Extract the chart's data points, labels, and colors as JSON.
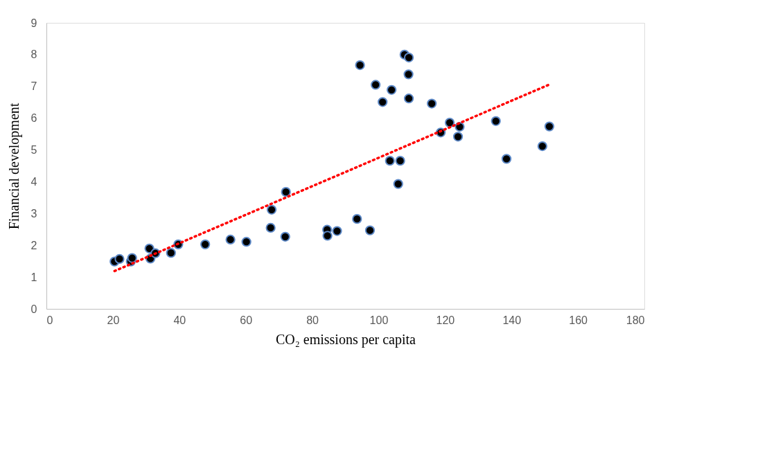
{
  "chart_data": {
    "type": "scatter",
    "xlabel": "CO₂ emissions per capita",
    "ylabel": "Financial development",
    "xlim": [
      0,
      180
    ],
    "xticks": [
      0,
      20,
      40,
      60,
      80,
      100,
      120,
      140,
      160,
      180
    ],
    "ylim": [
      0,
      9
    ],
    "yticks": [
      0,
      1,
      2,
      3,
      4,
      5,
      6,
      7,
      8,
      9
    ],
    "grid": false,
    "legend": false,
    "marker": "circle",
    "series": [
      {
        "color": "#000000",
        "x": [
          20.5,
          22.0,
          25.4,
          25.8,
          31.0,
          31.3,
          32.8,
          37.5,
          39.7,
          47.8,
          55.4,
          60.2,
          72.1,
          67.8,
          67.5,
          71.9,
          84.5,
          84.6,
          87.5,
          93.5,
          97.4,
          105.9,
          94.4,
          107.8,
          109.1,
          109.0,
          99.1,
          103.9,
          101.2,
          109.1,
          116.0,
          121.4,
          124.4,
          118.7,
          123.9,
          103.4,
          106.5,
          135.3,
          151.4,
          149.3,
          138.5
        ],
        "values": [
          1.49,
          1.57,
          1.49,
          1.6,
          1.9,
          1.58,
          1.75,
          1.76,
          2.03,
          2.03,
          2.18,
          2.11,
          3.68,
          3.12,
          2.55,
          2.27,
          2.49,
          2.3,
          2.45,
          2.83,
          2.47,
          3.93,
          7.67,
          8.0,
          7.91,
          7.38,
          7.05,
          6.89,
          6.51,
          6.62,
          6.46,
          5.86,
          5.73,
          5.55,
          5.42,
          4.66,
          4.66,
          5.91,
          5.74,
          5.12,
          4.72
        ]
      },
      {
        "type": "line",
        "color": "#ff0000",
        "line_style": "dotted",
        "marker": "none",
        "x": [
          20.5,
          151.2
        ],
        "values": [
          1.19,
          7.05
        ]
      }
    ]
  }
}
